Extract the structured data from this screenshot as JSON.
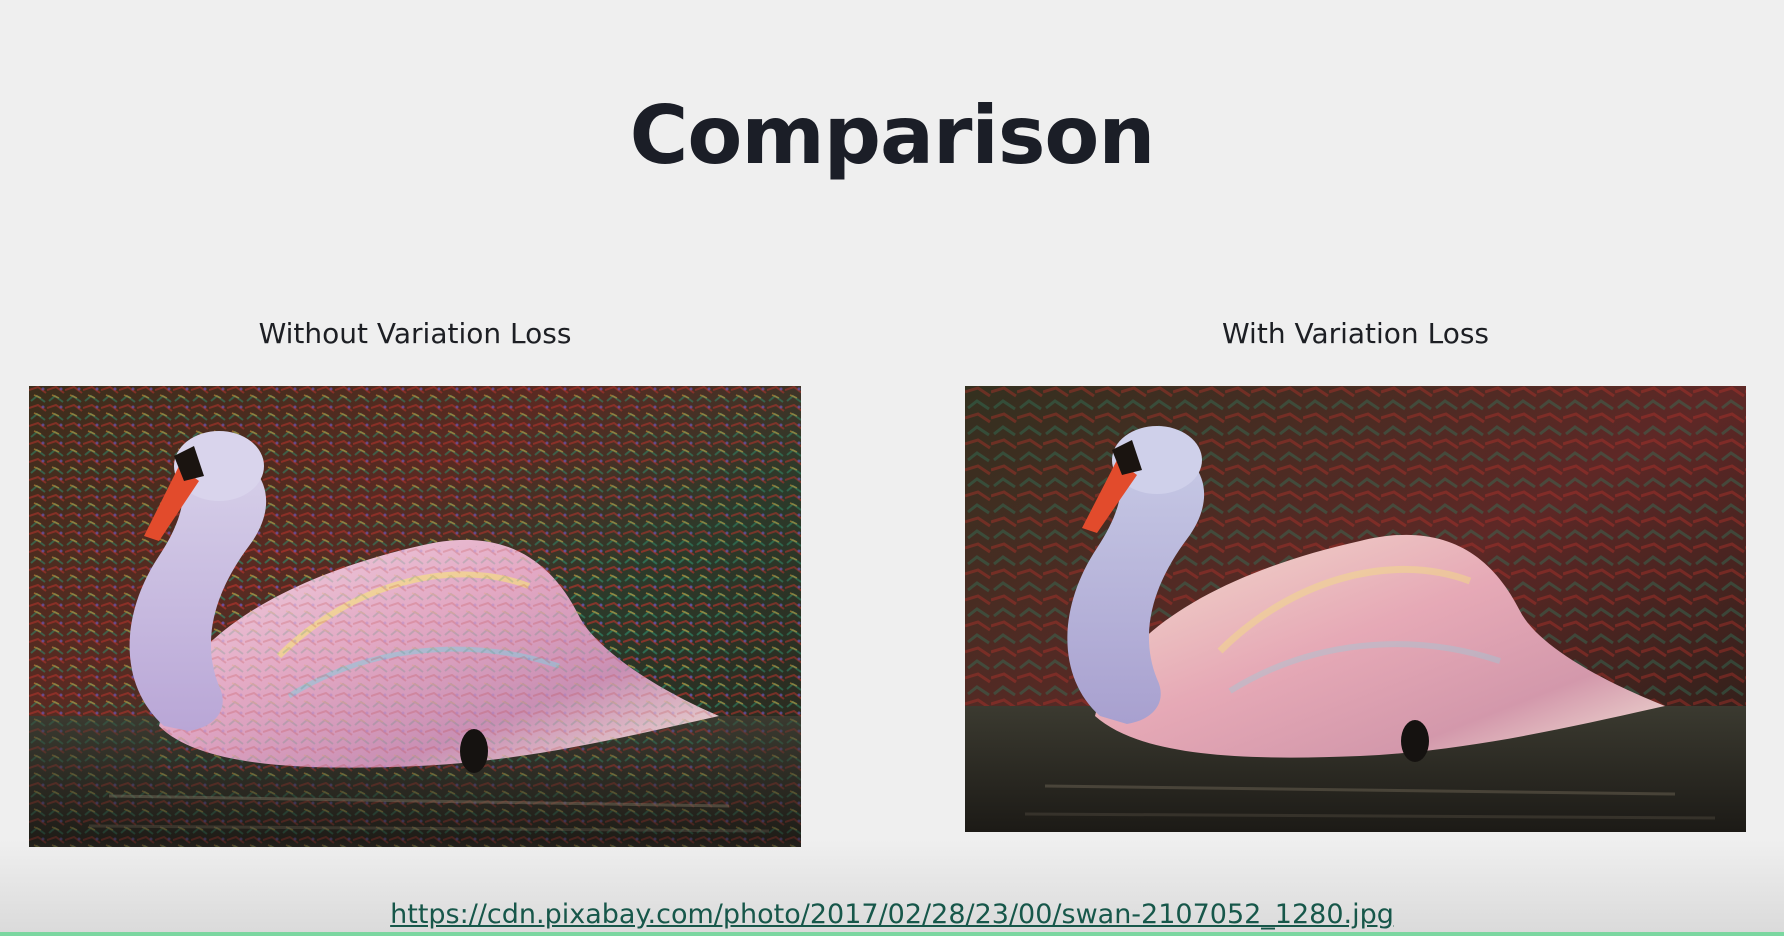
{
  "slide": {
    "title": "Comparison",
    "left_caption": "Without Variation Loss",
    "right_caption": "With Variation Loss",
    "source_url": "https://cdn.pixabay.com/photo/2017/02/28/23/00/swan-2107052_1280.jpg"
  },
  "images": {
    "left": {
      "description_icon": "stylized-swan-image",
      "noise_level": "high"
    },
    "right": {
      "description_icon": "stylized-swan-image",
      "noise_level": "low"
    }
  },
  "colors": {
    "background": "#efefef",
    "title": "#1b1e27",
    "link": "#17574a",
    "bottom_accent": "#7bd7a0"
  }
}
